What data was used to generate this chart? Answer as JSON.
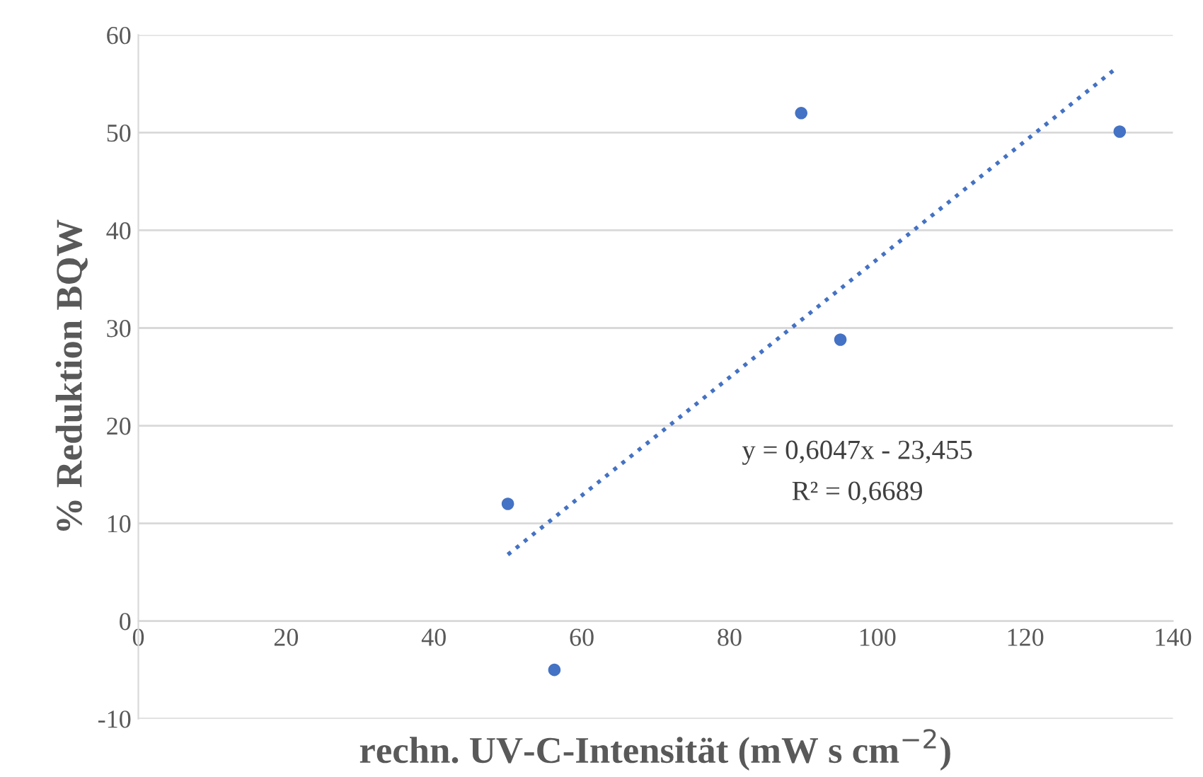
{
  "chart_data": {
    "type": "scatter",
    "xlabel": "rechn. UV-C-Intensität (mW s cm$^{−2}$)",
    "ylabel": "% Reduktion BQW",
    "xlim": [
      0,
      140
    ],
    "xticks": [
      0,
      20,
      40,
      60,
      80,
      100,
      120,
      140
    ],
    "ylim": [
      -10,
      60
    ],
    "yticks": [
      -10,
      0,
      10,
      20,
      30,
      40,
      50,
      60
    ],
    "grid": "y",
    "series": [
      {
        "color": "#4472c4",
        "marker": "circle",
        "x": [
          50,
          56.3,
          89.7,
          95,
          132.8
        ],
        "values": [
          12,
          -5,
          52,
          28.8,
          50.1
        ]
      },
      {
        "type": "line",
        "line_style": "dotted",
        "color": "#4472c4",
        "x": [
          50,
          132
        ],
        "values": [
          6.8,
          56.4
        ]
      }
    ],
    "annotations": [
      "y = 0,6047x - 23,455",
      "R² = 0,6689"
    ]
  }
}
